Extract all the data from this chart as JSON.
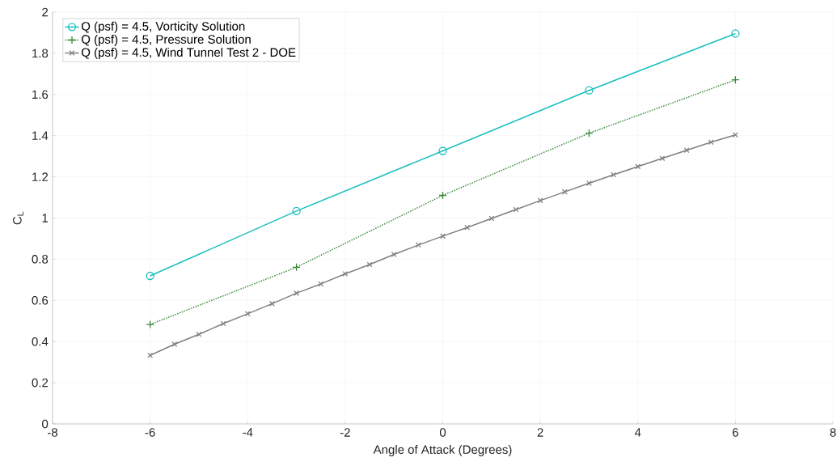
{
  "chart_data": {
    "type": "line",
    "xlabel": "Angle of Attack (Degrees)",
    "ylabel": "C$_{L}$",
    "xlim": [
      -8,
      8
    ],
    "xticks": [
      -8,
      -6,
      -4,
      -2,
      0,
      2,
      4,
      6,
      8
    ],
    "ylim": [
      0,
      2
    ],
    "yticks": [
      0,
      0.2,
      0.4,
      0.6,
      0.8,
      1,
      1.2,
      1.4,
      1.6,
      1.8,
      2
    ],
    "grid": true,
    "legend": "top left",
    "series": [
      {
        "name": "Q (psf) = 4.5, Vorticity Solution",
        "color": "#1abfbf",
        "marker": "circle",
        "line_style": "solid",
        "x": [
          -6,
          -3,
          0,
          3,
          6
        ],
        "values": [
          0.719,
          1.034,
          1.326,
          1.62,
          1.896
        ]
      },
      {
        "name": "Q (psf) = 4.5, Pressure Solution",
        "color": "#3a8a3a",
        "marker": "plus",
        "line_style": "dotted",
        "x": [
          -6,
          -3,
          0,
          3,
          6
        ],
        "values": [
          0.483,
          0.761,
          1.11,
          1.412,
          1.671
        ]
      },
      {
        "name": "Q (psf) = 4.5, Wind Tunnel Test 2 - DOE",
        "color": "#808080",
        "marker": "cross",
        "line_style": "solid",
        "x": [
          -6,
          -5.5,
          -5,
          -4.5,
          -4,
          -3.5,
          -3,
          -2.5,
          -2,
          -1.5,
          -1,
          -0.5,
          0,
          0.5,
          1,
          1.5,
          2,
          2.5,
          3,
          3.5,
          4,
          4.5,
          5,
          5.5,
          6
        ],
        "values": [
          0.333,
          0.387,
          0.435,
          0.487,
          0.535,
          0.584,
          0.635,
          0.68,
          0.729,
          0.774,
          0.823,
          0.869,
          0.912,
          0.954,
          0.998,
          1.041,
          1.085,
          1.127,
          1.169,
          1.21,
          1.25,
          1.29,
          1.329,
          1.368,
          1.404
        ]
      }
    ]
  }
}
